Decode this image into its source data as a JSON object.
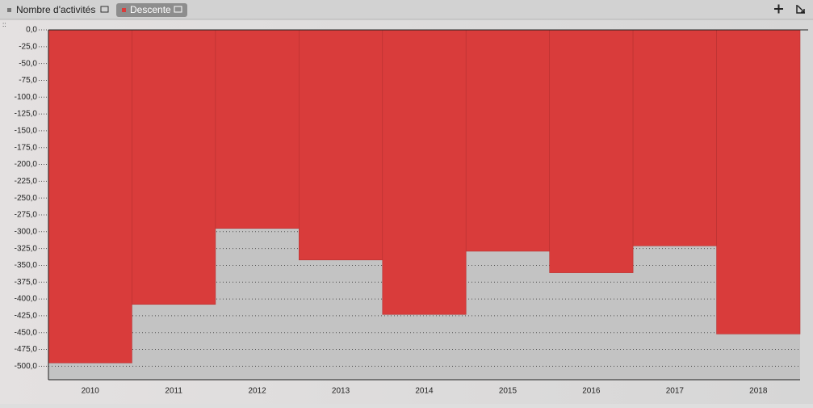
{
  "toolbar": {
    "tabs": [
      "Nombre d'activités"
    ]
  },
  "chart_data": {
    "type": "bar",
    "categories": [
      "2010",
      "2011",
      "2012",
      "2013",
      "2014",
      "2015",
      "2016",
      "2017",
      "2018"
    ],
    "series": [
      {
        "name": "Descente",
        "color": "#d93c3b",
        "values": [
          -495,
          -408,
          -295,
          -342,
          -423,
          -329,
          -361,
          -321,
          -452
        ]
      }
    ],
    "ylim": [
      -520,
      0
    ],
    "yticks": [
      {
        "value": 0,
        "label": "0,0"
      },
      {
        "value": -25,
        "label": "-25,0"
      },
      {
        "value": -50,
        "label": "-50,0"
      },
      {
        "value": -75,
        "label": "-75,0"
      },
      {
        "value": -100,
        "label": "-100,0"
      },
      {
        "value": -125,
        "label": "-125,0"
      },
      {
        "value": -150,
        "label": "-150,0"
      },
      {
        "value": -175,
        "label": "-175,0"
      },
      {
        "value": -200,
        "label": "-200,0"
      },
      {
        "value": -225,
        "label": "-225,0"
      },
      {
        "value": -250,
        "label": "-250,0"
      },
      {
        "value": -275,
        "label": "-275,0"
      },
      {
        "value": -300,
        "label": "-300,0"
      },
      {
        "value": -325,
        "label": "-325,0"
      },
      {
        "value": -350,
        "label": "-350,0"
      },
      {
        "value": -375,
        "label": "-375,0"
      },
      {
        "value": -400,
        "label": "-400,0"
      },
      {
        "value": -425,
        "label": "-425,0"
      },
      {
        "value": -450,
        "label": "-450,0"
      },
      {
        "value": -475,
        "label": "-475,0"
      },
      {
        "value": -500,
        "label": "-500,0"
      }
    ],
    "grid": true
  }
}
